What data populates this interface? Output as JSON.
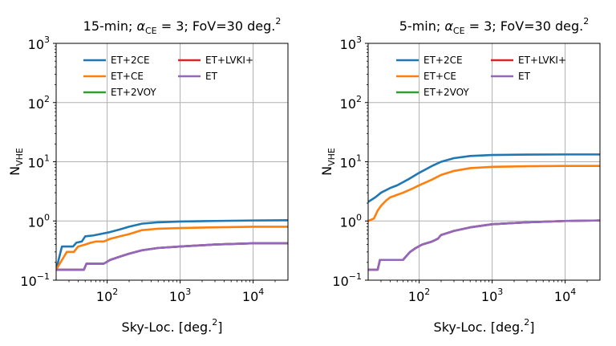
{
  "chart_data": [
    {
      "type": "line",
      "title": "15-min; αCE = 3; FoV=30 deg.2",
      "title_parts": {
        "pre": "15-min; ",
        "alpha": "α",
        "alpha_sub": "CE",
        "mid": " = 3; FoV=30 deg.",
        "sup": "2"
      },
      "xlabel": "Sky-Loc. [deg.2]",
      "xlabel_parts": {
        "pre": "Sky-Loc. [deg.",
        "sup": "2",
        "post": "]"
      },
      "ylabel": "NVHE",
      "ylabel_parts": {
        "main": "N",
        "sub": "VHE"
      },
      "xscale": "log",
      "yscale": "log",
      "xlim": [
        20,
        30000
      ],
      "ylim": [
        0.1,
        1000
      ],
      "grid": true,
      "legend_position": "upper-left",
      "x_ticks": [
        {
          "value": 100,
          "base": "10",
          "exp": "2"
        },
        {
          "value": 1000,
          "base": "10",
          "exp": "3"
        },
        {
          "value": 10000,
          "base": "10",
          "exp": "4"
        }
      ],
      "y_ticks": [
        {
          "value": 0.1,
          "base": "10",
          "exp": "−1"
        },
        {
          "value": 1,
          "base": "10",
          "exp": "0"
        },
        {
          "value": 10,
          "base": "10",
          "exp": "1"
        },
        {
          "value": 100,
          "base": "10",
          "exp": "2"
        },
        {
          "value": 1000,
          "base": "10",
          "exp": "3"
        }
      ],
      "series": [
        {
          "name": "ET+2CE",
          "color": "#1f77b4",
          "points": [
            [
              20,
              0.15
            ],
            [
              24,
              0.37
            ],
            [
              34,
              0.37
            ],
            [
              38,
              0.43
            ],
            [
              45,
              0.45
            ],
            [
              50,
              0.55
            ],
            [
              65,
              0.57
            ],
            [
              80,
              0.6
            ],
            [
              110,
              0.65
            ],
            [
              150,
              0.72
            ],
            [
              200,
              0.8
            ],
            [
              300,
              0.9
            ],
            [
              500,
              0.95
            ],
            [
              1000,
              0.98
            ],
            [
              3000,
              1.0
            ],
            [
              10000,
              1.02
            ],
            [
              30000,
              1.03
            ]
          ]
        },
        {
          "name": "ET+CE",
          "color": "#ff7f0e",
          "points": [
            [
              20,
              0.15
            ],
            [
              28,
              0.3
            ],
            [
              35,
              0.3
            ],
            [
              40,
              0.37
            ],
            [
              50,
              0.4
            ],
            [
              60,
              0.43
            ],
            [
              70,
              0.45
            ],
            [
              90,
              0.45
            ],
            [
              110,
              0.5
            ],
            [
              150,
              0.55
            ],
            [
              200,
              0.6
            ],
            [
              300,
              0.7
            ],
            [
              500,
              0.74
            ],
            [
              1000,
              0.76
            ],
            [
              3000,
              0.78
            ],
            [
              10000,
              0.8
            ],
            [
              30000,
              0.8
            ]
          ]
        },
        {
          "name": "ET+2VOY",
          "color": "#2ca02c",
          "points": [
            [
              20,
              0.15
            ],
            [
              48,
              0.15
            ],
            [
              52,
              0.19
            ],
            [
              90,
              0.19
            ],
            [
              110,
              0.22
            ],
            [
              150,
              0.25
            ],
            [
              200,
              0.28
            ],
            [
              300,
              0.32
            ],
            [
              500,
              0.35
            ],
            [
              1000,
              0.37
            ],
            [
              3000,
              0.4
            ],
            [
              10000,
              0.42
            ],
            [
              30000,
              0.42
            ]
          ]
        },
        {
          "name": "ET+LVKI+",
          "color": "#d62728",
          "points": [
            [
              20,
              0.15
            ],
            [
              48,
              0.15
            ],
            [
              52,
              0.19
            ],
            [
              90,
              0.19
            ],
            [
              110,
              0.22
            ],
            [
              150,
              0.25
            ],
            [
              200,
              0.28
            ],
            [
              300,
              0.32
            ],
            [
              500,
              0.35
            ],
            [
              1000,
              0.37
            ],
            [
              3000,
              0.4
            ],
            [
              10000,
              0.42
            ],
            [
              30000,
              0.42
            ]
          ]
        },
        {
          "name": "ET",
          "color": "#9467bd",
          "points": [
            [
              20,
              0.15
            ],
            [
              48,
              0.15
            ],
            [
              52,
              0.19
            ],
            [
              90,
              0.19
            ],
            [
              110,
              0.22
            ],
            [
              150,
              0.25
            ],
            [
              200,
              0.28
            ],
            [
              300,
              0.32
            ],
            [
              500,
              0.35
            ],
            [
              1000,
              0.37
            ],
            [
              3000,
              0.4
            ],
            [
              10000,
              0.42
            ],
            [
              30000,
              0.42
            ]
          ]
        }
      ]
    },
    {
      "type": "line",
      "title": "5-min; αCE = 3; FoV=30 deg.2",
      "title_parts": {
        "pre": "5-min; ",
        "alpha": "α",
        "alpha_sub": "CE",
        "mid": " = 3; FoV=30 deg.",
        "sup": "2"
      },
      "xlabel": "Sky-Loc. [deg.2]",
      "xlabel_parts": {
        "pre": "Sky-Loc. [deg.",
        "sup": "2",
        "post": "]"
      },
      "ylabel": "NVHE",
      "ylabel_parts": {
        "main": "N",
        "sub": "VHE"
      },
      "xscale": "log",
      "yscale": "log",
      "xlim": [
        20,
        30000
      ],
      "ylim": [
        0.1,
        1000
      ],
      "grid": true,
      "legend_position": "upper-left",
      "x_ticks": [
        {
          "value": 100,
          "base": "10",
          "exp": "2"
        },
        {
          "value": 1000,
          "base": "10",
          "exp": "3"
        },
        {
          "value": 10000,
          "base": "10",
          "exp": "4"
        }
      ],
      "y_ticks": [
        {
          "value": 0.1,
          "base": "10",
          "exp": "−1"
        },
        {
          "value": 1,
          "base": "10",
          "exp": "0"
        },
        {
          "value": 10,
          "base": "10",
          "exp": "1"
        },
        {
          "value": 100,
          "base": "10",
          "exp": "2"
        },
        {
          "value": 1000,
          "base": "10",
          "exp": "3"
        }
      ],
      "series": [
        {
          "name": "ET+2CE",
          "color": "#1f77b4",
          "points": [
            [
              20,
              2.1
            ],
            [
              25,
              2.5
            ],
            [
              30,
              3.0
            ],
            [
              40,
              3.6
            ],
            [
              50,
              4.0
            ],
            [
              70,
              5.0
            ],
            [
              100,
              6.5
            ],
            [
              150,
              8.5
            ],
            [
              200,
              10
            ],
            [
              300,
              11.5
            ],
            [
              500,
              12.5
            ],
            [
              1000,
              13
            ],
            [
              3000,
              13.2
            ],
            [
              10000,
              13.3
            ],
            [
              30000,
              13.3
            ]
          ]
        },
        {
          "name": "ET+CE",
          "color": "#ff7f0e",
          "points": [
            [
              20,
              1.0
            ],
            [
              24,
              1.1
            ],
            [
              27,
              1.5
            ],
            [
              30,
              1.8
            ],
            [
              35,
              2.2
            ],
            [
              40,
              2.5
            ],
            [
              60,
              3.0
            ],
            [
              80,
              3.5
            ],
            [
              100,
              4.0
            ],
            [
              150,
              5.0
            ],
            [
              200,
              6.0
            ],
            [
              300,
              7.0
            ],
            [
              500,
              7.8
            ],
            [
              1000,
              8.2
            ],
            [
              3000,
              8.4
            ],
            [
              10000,
              8.5
            ],
            [
              30000,
              8.5
            ]
          ]
        },
        {
          "name": "ET+2VOY",
          "color": "#2ca02c",
          "points": [
            [
              20,
              0.15
            ],
            [
              27,
              0.15
            ],
            [
              29,
              0.22
            ],
            [
              60,
              0.22
            ],
            [
              75,
              0.3
            ],
            [
              90,
              0.35
            ],
            [
              110,
              0.4
            ],
            [
              150,
              0.45
            ],
            [
              180,
              0.5
            ],
            [
              200,
              0.58
            ],
            [
              300,
              0.68
            ],
            [
              500,
              0.78
            ],
            [
              1000,
              0.88
            ],
            [
              3000,
              0.95
            ],
            [
              10000,
              1.0
            ],
            [
              30000,
              1.02
            ]
          ]
        },
        {
          "name": "ET+LVKI+",
          "color": "#d62728",
          "points": [
            [
              20,
              0.15
            ],
            [
              27,
              0.15
            ],
            [
              29,
              0.22
            ],
            [
              60,
              0.22
            ],
            [
              75,
              0.3
            ],
            [
              90,
              0.35
            ],
            [
              110,
              0.4
            ],
            [
              150,
              0.45
            ],
            [
              180,
              0.5
            ],
            [
              200,
              0.58
            ],
            [
              300,
              0.68
            ],
            [
              500,
              0.78
            ],
            [
              1000,
              0.88
            ],
            [
              3000,
              0.95
            ],
            [
              10000,
              1.0
            ],
            [
              30000,
              1.02
            ]
          ]
        },
        {
          "name": "ET",
          "color": "#9467bd",
          "points": [
            [
              20,
              0.15
            ],
            [
              27,
              0.15
            ],
            [
              29,
              0.22
            ],
            [
              60,
              0.22
            ],
            [
              75,
              0.3
            ],
            [
              90,
              0.35
            ],
            [
              110,
              0.4
            ],
            [
              150,
              0.45
            ],
            [
              180,
              0.5
            ],
            [
              200,
              0.58
            ],
            [
              300,
              0.68
            ],
            [
              500,
              0.78
            ],
            [
              1000,
              0.88
            ],
            [
              3000,
              0.95
            ],
            [
              10000,
              1.0
            ],
            [
              30000,
              1.02
            ]
          ]
        }
      ]
    }
  ]
}
